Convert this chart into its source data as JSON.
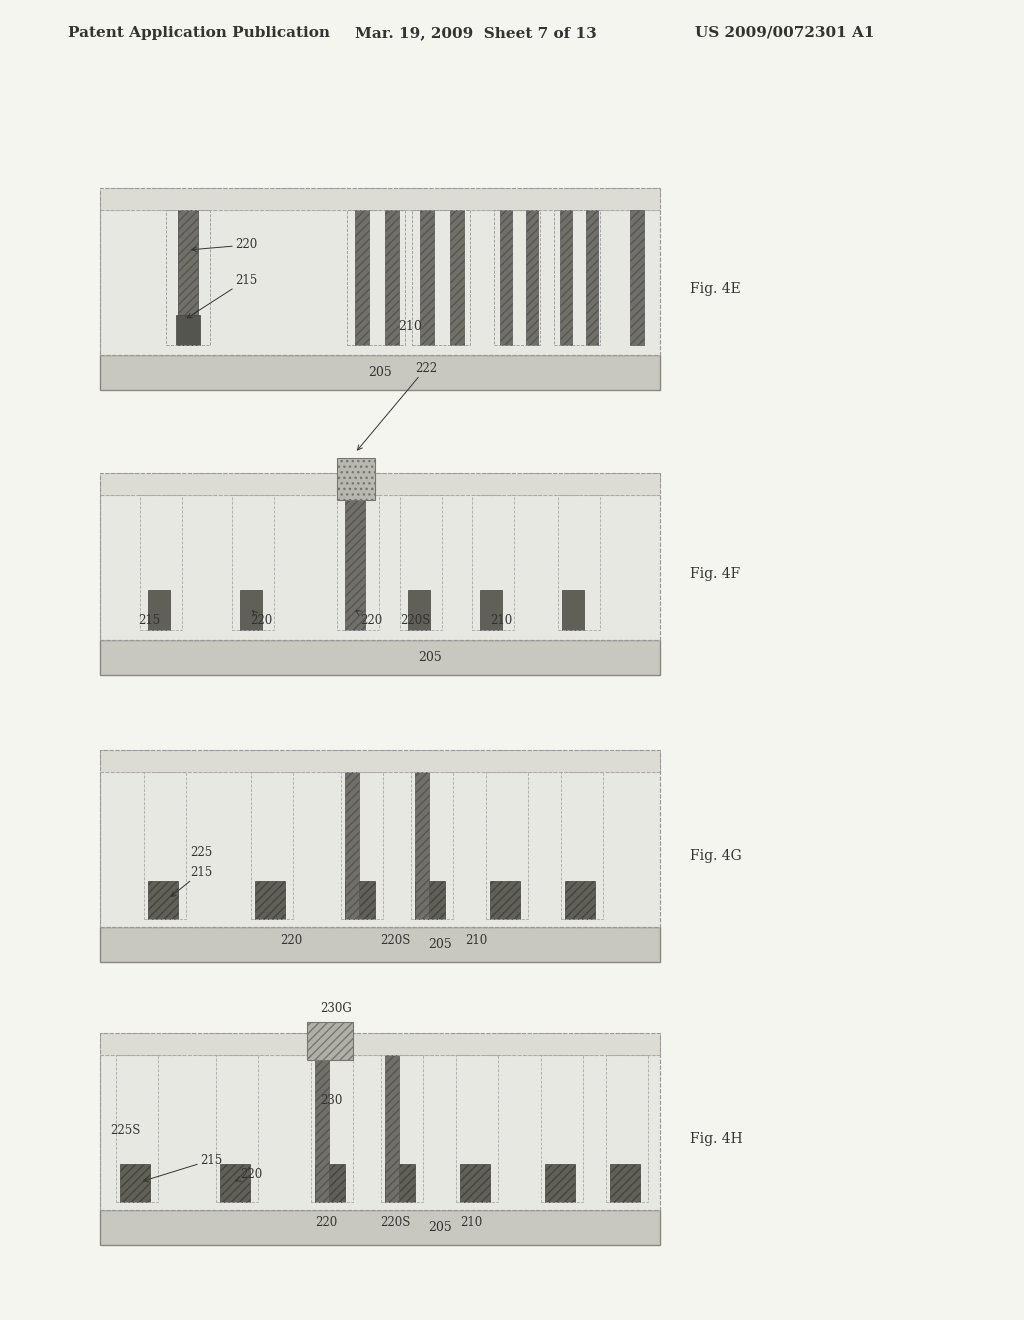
{
  "header_left": "Patent Application Publication",
  "header_mid": "Mar. 19, 2009  Sheet 7 of 13",
  "header_right": "US 2009/0072301 A1",
  "bg_color": "#f5f5f0",
  "panel_bg": "#f0efeb",
  "substrate_color": "#c8c8c0",
  "epi_color": "#e8e8e2",
  "dark_stripe": "#707068",
  "medium_gray": "#909088",
  "light_stripe": "#d0d0c8",
  "cap_color": "#b0b0a8",
  "dotted_color": "#aaaaaa"
}
